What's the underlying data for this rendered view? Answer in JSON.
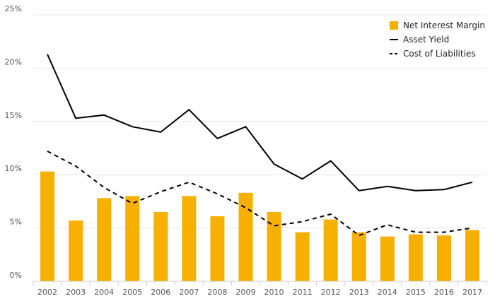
{
  "chart_data": {
    "type": "bar",
    "title": "",
    "xlabel": "",
    "ylabel": "",
    "categories": [
      "2002",
      "2003",
      "2004",
      "2005",
      "2006",
      "2007",
      "2008",
      "2009",
      "2010",
      "2011",
      "2012",
      "2013",
      "2014",
      "2015",
      "2016",
      "2017"
    ],
    "ylim": [
      0,
      25
    ],
    "yticks": [
      0,
      5,
      10,
      15,
      20,
      25
    ],
    "ytick_labels": [
      "0%",
      "5%",
      "10%",
      "15%",
      "20%",
      "25%"
    ],
    "grid": true,
    "legend_position": "top-right",
    "series": [
      {
        "name": "Net Interest Margin",
        "kind": "bar",
        "color": "#f8b000",
        "values": [
          10.3,
          5.7,
          7.8,
          8.0,
          6.5,
          8.0,
          6.1,
          8.3,
          6.5,
          4.6,
          5.8,
          4.6,
          4.2,
          4.4,
          4.3,
          4.8
        ]
      },
      {
        "name": "Asset Yield",
        "kind": "line",
        "style": "solid",
        "color": "#000000",
        "values": [
          21.3,
          15.3,
          15.6,
          14.5,
          14.0,
          16.1,
          13.4,
          14.5,
          11.0,
          9.6,
          11.3,
          8.5,
          8.9,
          8.5,
          8.6,
          9.3
        ]
      },
      {
        "name": "Cost of Liabilities",
        "kind": "line",
        "style": "dashed",
        "color": "#000000",
        "values": [
          12.2,
          10.8,
          8.8,
          7.3,
          8.4,
          9.3,
          8.2,
          6.9,
          5.2,
          5.6,
          6.3,
          4.3,
          5.3,
          4.6,
          4.6,
          5.0
        ]
      }
    ]
  }
}
